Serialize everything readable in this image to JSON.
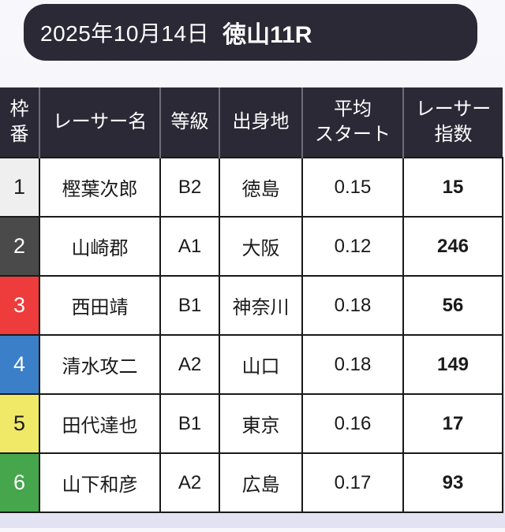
{
  "page": {
    "background_top": "#f8f8fc",
    "background_bottom": "#e2e2f3"
  },
  "header": {
    "date": "2025年10月14日",
    "race": "徳山11R",
    "background": "#2b2936",
    "text_color": "#ffffff"
  },
  "table": {
    "columns": [
      {
        "key": "waku",
        "label": "枠\n番"
      },
      {
        "key": "name",
        "label": "レーサー名"
      },
      {
        "key": "grade",
        "label": "等級"
      },
      {
        "key": "origin",
        "label": "出身地"
      },
      {
        "key": "avg_start",
        "label": "平均\nスタート"
      },
      {
        "key": "index",
        "label": "レーサー\n指数"
      }
    ],
    "rows": [
      {
        "waku": "1",
        "waku_bg": "#efefef",
        "waku_color": "#222222",
        "name": "樫葉次郎",
        "grade": "B2",
        "origin": "徳島",
        "avg_start": "0.15",
        "index": "15"
      },
      {
        "waku": "2",
        "waku_bg": "#4a4a4a",
        "waku_color": "#ffffff",
        "name": "山崎郡",
        "grade": "A1",
        "origin": "大阪",
        "avg_start": "0.12",
        "index": "246"
      },
      {
        "waku": "3",
        "waku_bg": "#ee3b3b",
        "waku_color": "#ffffff",
        "name": "西田靖",
        "grade": "B1",
        "origin": "神奈川",
        "avg_start": "0.18",
        "index": "56"
      },
      {
        "waku": "4",
        "waku_bg": "#3b7fc9",
        "waku_color": "#ffffff",
        "name": "清水攻二",
        "grade": "A2",
        "origin": "山口",
        "avg_start": "0.18",
        "index": "149"
      },
      {
        "waku": "5",
        "waku_bg": "#f0e968",
        "waku_color": "#1a1a1a",
        "name": "田代達也",
        "grade": "B1",
        "origin": "東京",
        "avg_start": "0.16",
        "index": "17"
      },
      {
        "waku": "6",
        "waku_bg": "#46a64c",
        "waku_color": "#ffffff",
        "name": "山下和彦",
        "grade": "A2",
        "origin": "広島",
        "avg_start": "0.17",
        "index": "93"
      }
    ]
  }
}
